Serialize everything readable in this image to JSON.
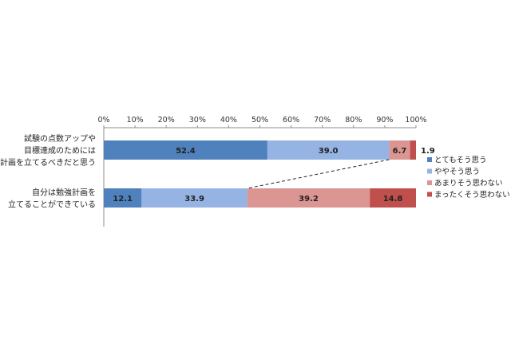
{
  "chart_data": {
    "type": "bar",
    "orientation": "horizontal",
    "stacked": true,
    "xlim": [
      0,
      100
    ],
    "tick_labels": [
      "0%",
      "10%",
      "20%",
      "30%",
      "40%",
      "50%",
      "60%",
      "70%",
      "80%",
      "90%",
      "100%"
    ],
    "categories": [
      [
        "試験の点数アップや",
        "目標達成のためには",
        "勉強計画を立てるべきだと思う"
      ],
      [
        "自分は勉強計画を",
        "立てることができている"
      ]
    ],
    "series": [
      {
        "name": "とてもそう思う",
        "color": "#4f81bd",
        "values": [
          52.4,
          12.1
        ],
        "labels": [
          "52.4",
          "12.1"
        ]
      },
      {
        "name": "ややそう思う",
        "color": "#95b3e3",
        "values": [
          39.0,
          33.9
        ],
        "labels": [
          "39.0",
          "33.9"
        ]
      },
      {
        "name": "あまりそう思わない",
        "color": "#db9593",
        "values": [
          6.7,
          39.2
        ],
        "labels": [
          "6.7",
          "39.2"
        ]
      },
      {
        "name": "まったくそう思わない",
        "color": "#c0504d",
        "values": [
          1.9,
          14.8
        ],
        "labels": [
          "1.9",
          "14.8"
        ]
      }
    ],
    "connector_line": {
      "style": "dashed",
      "from_category": 0,
      "to_category": 1,
      "after_series": 1
    },
    "legend_position": "right",
    "grid": false
  }
}
